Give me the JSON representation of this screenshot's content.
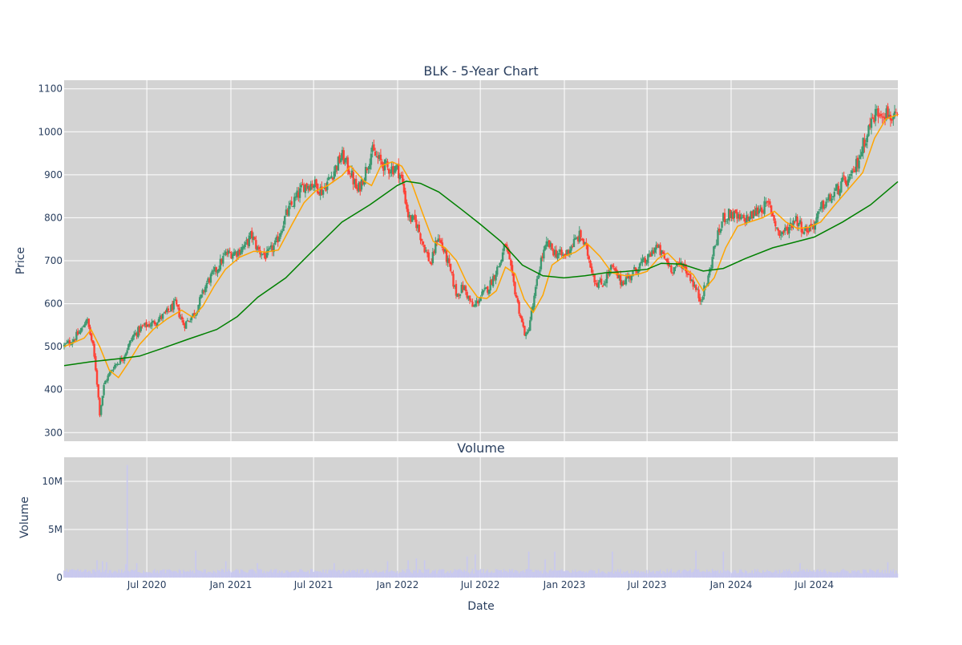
{
  "chart_data": [
    {
      "type": "candlestick",
      "title": "BLK - 5-Year Chart",
      "ylabel": "Price",
      "xlabel": "",
      "ylim": [
        280,
        1120
      ],
      "y_ticks": [
        300,
        400,
        500,
        600,
        700,
        800,
        900,
        1000,
        1100
      ],
      "x_range": [
        "2020-01-02",
        "2024-12-31"
      ],
      "x_ticks": [
        {
          "date": "2020-07-01",
          "label": "Jul 2020"
        },
        {
          "date": "2021-01-01",
          "label": "Jan 2021"
        },
        {
          "date": "2021-07-01",
          "label": "Jul 2021"
        },
        {
          "date": "2022-01-01",
          "label": "Jan 2022"
        },
        {
          "date": "2022-07-01",
          "label": "Jul 2022"
        },
        {
          "date": "2023-01-01",
          "label": "Jan 2023"
        },
        {
          "date": "2023-07-01",
          "label": "Jul 2023"
        },
        {
          "date": "2024-01-01",
          "label": "Jan 2024"
        },
        {
          "date": "2024-07-01",
          "label": "Jul 2024"
        }
      ],
      "grid": true,
      "background": "#d3d3d3",
      "increasing_color": "#3d9970",
      "decreasing_color": "#ff4136",
      "close_path": [
        [
          "2020-01-02",
          502
        ],
        [
          "2020-01-20",
          515
        ],
        [
          "2020-02-10",
          540
        ],
        [
          "2020-02-20",
          568
        ],
        [
          "2020-03-05",
          500
        ],
        [
          "2020-03-12",
          440
        ],
        [
          "2020-03-20",
          345
        ],
        [
          "2020-03-30",
          415
        ],
        [
          "2020-04-20",
          455
        ],
        [
          "2020-05-10",
          475
        ],
        [
          "2020-06-01",
          525
        ],
        [
          "2020-06-20",
          545
        ],
        [
          "2020-07-15",
          555
        ],
        [
          "2020-08-10",
          575
        ],
        [
          "2020-09-01",
          600
        ],
        [
          "2020-09-20",
          550
        ],
        [
          "2020-10-15",
          580
        ],
        [
          "2020-11-10",
          650
        ],
        [
          "2020-12-01",
          680
        ],
        [
          "2020-12-20",
          715
        ],
        [
          "2021-01-15",
          720
        ],
        [
          "2021-02-01",
          735
        ],
        [
          "2021-02-15",
          760
        ],
        [
          "2021-03-01",
          725
        ],
        [
          "2021-03-20",
          710
        ],
        [
          "2021-04-10",
          740
        ],
        [
          "2021-05-01",
          805
        ],
        [
          "2021-05-20",
          840
        ],
        [
          "2021-06-10",
          875
        ],
        [
          "2021-07-01",
          880
        ],
        [
          "2021-07-20",
          862
        ],
        [
          "2021-08-10",
          900
        ],
        [
          "2021-09-01",
          945
        ],
        [
          "2021-09-20",
          905
        ],
        [
          "2021-10-05",
          860
        ],
        [
          "2021-10-20",
          900
        ],
        [
          "2021-11-05",
          955
        ],
        [
          "2021-11-20",
          935
        ],
        [
          "2021-12-10",
          915
        ],
        [
          "2021-12-31",
          915
        ],
        [
          "2022-01-10",
          890
        ],
        [
          "2022-01-25",
          800
        ],
        [
          "2022-02-10",
          790
        ],
        [
          "2022-03-01",
          730
        ],
        [
          "2022-03-15",
          690
        ],
        [
          "2022-03-30",
          760
        ],
        [
          "2022-04-20",
          700
        ],
        [
          "2022-05-10",
          620
        ],
        [
          "2022-05-25",
          640
        ],
        [
          "2022-06-15",
          590
        ],
        [
          "2022-07-01",
          615
        ],
        [
          "2022-07-20",
          640
        ],
        [
          "2022-08-15",
          700
        ],
        [
          "2022-08-25",
          740
        ],
        [
          "2022-09-15",
          630
        ],
        [
          "2022-10-01",
          550
        ],
        [
          "2022-10-10",
          520
        ],
        [
          "2022-10-25",
          600
        ],
        [
          "2022-11-10",
          700
        ],
        [
          "2022-11-25",
          740
        ],
        [
          "2022-12-10",
          720
        ],
        [
          "2022-12-31",
          710
        ],
        [
          "2023-01-20",
          740
        ],
        [
          "2023-02-05",
          760
        ],
        [
          "2023-02-20",
          720
        ],
        [
          "2023-03-10",
          650
        ],
        [
          "2023-03-25",
          645
        ],
        [
          "2023-04-15",
          685
        ],
        [
          "2023-05-05",
          650
        ],
        [
          "2023-05-25",
          665
        ],
        [
          "2023-06-15",
          690
        ],
        [
          "2023-07-01",
          700
        ],
        [
          "2023-07-20",
          735
        ],
        [
          "2023-08-05",
          710
        ],
        [
          "2023-08-25",
          680
        ],
        [
          "2023-09-15",
          695
        ],
        [
          "2023-10-05",
          660
        ],
        [
          "2023-10-25",
          610
        ],
        [
          "2023-11-10",
          650
        ],
        [
          "2023-11-25",
          730
        ],
        [
          "2023-12-15",
          800
        ],
        [
          "2024-01-01",
          810
        ],
        [
          "2024-01-20",
          795
        ],
        [
          "2024-02-10",
          800
        ],
        [
          "2024-03-01",
          820
        ],
        [
          "2024-03-25",
          830
        ],
        [
          "2024-04-15",
          760
        ],
        [
          "2024-05-05",
          775
        ],
        [
          "2024-05-20",
          800
        ],
        [
          "2024-06-10",
          770
        ],
        [
          "2024-07-01",
          785
        ],
        [
          "2024-07-20",
          830
        ],
        [
          "2024-08-10",
          850
        ],
        [
          "2024-09-01",
          880
        ],
        [
          "2024-09-20",
          890
        ],
        [
          "2024-10-10",
          950
        ],
        [
          "2024-10-25",
          1000
        ],
        [
          "2024-11-10",
          1040
        ],
        [
          "2024-11-25",
          1050
        ],
        [
          "2024-12-10",
          1040
        ],
        [
          "2024-12-31",
          1025
        ]
      ],
      "overlays": [
        {
          "color": "#ffa500",
          "points": [
            [
              "2020-01-02",
              500
            ],
            [
              "2020-02-15",
              520
            ],
            [
              "2020-03-01",
              540
            ],
            [
              "2020-03-20",
              500
            ],
            [
              "2020-04-10",
              445
            ],
            [
              "2020-04-30",
              428
            ],
            [
              "2020-05-20",
              460
            ],
            [
              "2020-06-15",
              505
            ],
            [
              "2020-07-15",
              540
            ],
            [
              "2020-08-15",
              565
            ],
            [
              "2020-09-15",
              585
            ],
            [
              "2020-10-10",
              568
            ],
            [
              "2020-11-01",
              595
            ],
            [
              "2020-11-25",
              640
            ],
            [
              "2020-12-20",
              680
            ],
            [
              "2021-01-20",
              708
            ],
            [
              "2021-02-20",
              722
            ],
            [
              "2021-03-20",
              720
            ],
            [
              "2021-04-15",
              725
            ],
            [
              "2021-05-15",
              785
            ],
            [
              "2021-06-10",
              835
            ],
            [
              "2021-07-05",
              862
            ],
            [
              "2021-08-01",
              875
            ],
            [
              "2021-09-01",
              898
            ],
            [
              "2021-09-20",
              920
            ],
            [
              "2021-10-20",
              885
            ],
            [
              "2021-11-05",
              875
            ],
            [
              "2021-11-25",
              920
            ],
            [
              "2021-12-20",
              930
            ],
            [
              "2022-01-10",
              920
            ],
            [
              "2022-02-01",
              880
            ],
            [
              "2022-02-25",
              810
            ],
            [
              "2022-03-20",
              745
            ],
            [
              "2022-04-15",
              730
            ],
            [
              "2022-05-10",
              700
            ],
            [
              "2022-06-01",
              650
            ],
            [
              "2022-06-25",
              615
            ],
            [
              "2022-07-15",
              612
            ],
            [
              "2022-08-05",
              630
            ],
            [
              "2022-08-25",
              685
            ],
            [
              "2022-09-15",
              670
            ],
            [
              "2022-10-05",
              610
            ],
            [
              "2022-10-25",
              580
            ],
            [
              "2022-11-15",
              620
            ],
            [
              "2022-12-05",
              690
            ],
            [
              "2022-12-31",
              710
            ],
            [
              "2023-01-25",
              720
            ],
            [
              "2023-02-20",
              740
            ],
            [
              "2023-03-20",
              710
            ],
            [
              "2023-04-15",
              672
            ],
            [
              "2023-05-15",
              665
            ],
            [
              "2023-06-10",
              668
            ],
            [
              "2023-07-01",
              675
            ],
            [
              "2023-07-25",
              705
            ],
            [
              "2023-08-15",
              718
            ],
            [
              "2023-09-10",
              690
            ],
            [
              "2023-10-10",
              668
            ],
            [
              "2023-11-01",
              630
            ],
            [
              "2023-11-25",
              660
            ],
            [
              "2023-12-20",
              730
            ],
            [
              "2024-01-15",
              780
            ],
            [
              "2024-02-10",
              790
            ],
            [
              "2024-03-10",
              800
            ],
            [
              "2024-04-05",
              815
            ],
            [
              "2024-04-30",
              790
            ],
            [
              "2024-05-25",
              775
            ],
            [
              "2024-06-20",
              778
            ],
            [
              "2024-07-15",
              790
            ],
            [
              "2024-08-15",
              830
            ],
            [
              "2024-09-15",
              868
            ],
            [
              "2024-10-15",
              905
            ],
            [
              "2024-11-10",
              985
            ],
            [
              "2024-12-05",
              1030
            ],
            [
              "2024-12-31",
              1040
            ]
          ]
        },
        {
          "color": "#008000",
          "points": [
            [
              "2020-01-02",
              456
            ],
            [
              "2020-03-01",
              465
            ],
            [
              "2020-05-01",
              472
            ],
            [
              "2020-06-15",
              478
            ],
            [
              "2020-08-01",
              495
            ],
            [
              "2020-10-01",
              518
            ],
            [
              "2020-12-01",
              540
            ],
            [
              "2021-01-15",
              570
            ],
            [
              "2021-03-01",
              615
            ],
            [
              "2021-05-01",
              660
            ],
            [
              "2021-07-01",
              725
            ],
            [
              "2021-09-01",
              790
            ],
            [
              "2021-11-01",
              830
            ],
            [
              "2021-12-31",
              875
            ],
            [
              "2022-01-20",
              885
            ],
            [
              "2022-02-20",
              880
            ],
            [
              "2022-04-01",
              860
            ],
            [
              "2022-05-20",
              820
            ],
            [
              "2022-07-01",
              785
            ],
            [
              "2022-08-15",
              745
            ],
            [
              "2022-10-01",
              690
            ],
            [
              "2022-11-15",
              665
            ],
            [
              "2022-12-31",
              660
            ],
            [
              "2023-02-15",
              665
            ],
            [
              "2023-04-01",
              672
            ],
            [
              "2023-05-15",
              675
            ],
            [
              "2023-07-01",
              680
            ],
            [
              "2023-08-01",
              694
            ],
            [
              "2023-09-15",
              692
            ],
            [
              "2023-11-01",
              676
            ],
            [
              "2023-12-15",
              682
            ],
            [
              "2024-02-01",
              705
            ],
            [
              "2024-04-01",
              730
            ],
            [
              "2024-05-15",
              742
            ],
            [
              "2024-07-01",
              755
            ],
            [
              "2024-09-01",
              790
            ],
            [
              "2024-11-01",
              830
            ],
            [
              "2024-12-31",
              884
            ]
          ]
        }
      ]
    },
    {
      "type": "bar",
      "title": "Volume",
      "xlabel": "Date",
      "ylabel": "Volume",
      "ylim": [
        0,
        12500000
      ],
      "y_ticks": [
        {
          "value": 0,
          "label": "0"
        },
        {
          "value": 5000000,
          "label": "5M"
        },
        {
          "value": 10000000,
          "label": "10M"
        }
      ],
      "x_ticks": [
        {
          "date": "2020-07-01",
          "label": "Jul 2020"
        },
        {
          "date": "2021-01-01",
          "label": "Jan 2021"
        },
        {
          "date": "2021-07-01",
          "label": "Jul 2021"
        },
        {
          "date": "2022-01-01",
          "label": "Jan 2022"
        },
        {
          "date": "2022-07-01",
          "label": "Jul 2022"
        },
        {
          "date": "2023-01-01",
          "label": "Jan 2023"
        },
        {
          "date": "2023-07-01",
          "label": "Jul 2023"
        },
        {
          "date": "2024-01-01",
          "label": "Jan 2024"
        },
        {
          "date": "2024-07-01",
          "label": "Jul 2024"
        }
      ],
      "grid": true,
      "background": "#d3d3d3",
      "bar_color": "#c8c8f0",
      "baseline_volume": 700000,
      "spikes": [
        [
          "2020-03-15",
          1800000
        ],
        [
          "2020-03-25",
          1700000
        ],
        [
          "2020-04-05",
          1600000
        ],
        [
          "2020-05-15",
          1400000
        ],
        [
          "2020-05-20",
          11700000
        ],
        [
          "2020-06-10",
          1500000
        ],
        [
          "2020-10-15",
          2800000
        ],
        [
          "2020-12-20",
          1700000
        ],
        [
          "2021-03-01",
          1500000
        ],
        [
          "2021-08-15",
          1500000
        ],
        [
          "2021-12-10",
          1700000
        ],
        [
          "2022-01-25",
          1800000
        ],
        [
          "2022-02-10",
          2000000
        ],
        [
          "2022-03-01",
          1800000
        ],
        [
          "2022-06-01",
          2200000
        ],
        [
          "2022-06-20",
          2400000
        ],
        [
          "2022-10-15",
          2700000
        ],
        [
          "2022-11-20",
          1900000
        ],
        [
          "2022-12-10",
          2700000
        ],
        [
          "2023-04-15",
          2700000
        ],
        [
          "2023-10-15",
          2800000
        ],
        [
          "2023-12-15",
          2700000
        ],
        [
          "2024-06-01",
          1500000
        ],
        [
          "2024-12-10",
          1600000
        ]
      ]
    }
  ]
}
